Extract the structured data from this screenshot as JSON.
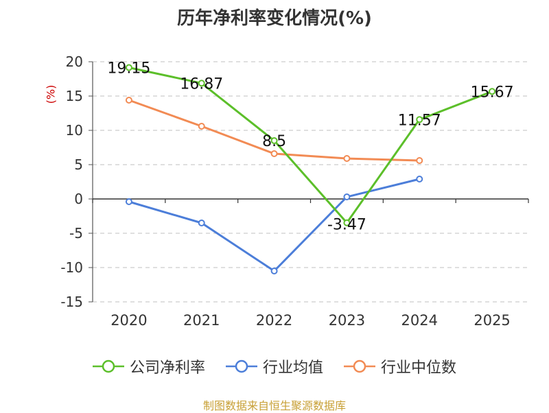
{
  "title": "历年净利率变化情况(%)",
  "source": "制图数据来自恒生聚源数据库",
  "chart_data": {
    "type": "line",
    "title": "历年净利率变化情况(%)",
    "ylabel": "(%)",
    "xlabel": "",
    "categories": [
      "2020",
      "2021",
      "2022",
      "2023",
      "2024",
      "2025"
    ],
    "ylim": [
      -15,
      20
    ],
    "yticks": [
      20,
      15,
      10,
      5,
      0,
      -5,
      -10,
      -15
    ],
    "grid": true,
    "legend_position": "bottom",
    "series": [
      {
        "name": "公司净利率",
        "color": "#5cbf2a",
        "values": [
          19.15,
          16.87,
          8.5,
          -3.47,
          11.57,
          15.67
        ],
        "labels": [
          "19.15",
          "16.87",
          "8.5",
          "-3.47",
          "11.57",
          "15.67"
        ]
      },
      {
        "name": "行业均值",
        "color": "#4c7ed9",
        "values": [
          -0.4,
          -3.5,
          -10.5,
          0.3,
          2.9,
          null
        ]
      },
      {
        "name": "行业中位数",
        "color": "#f28b54",
        "values": [
          14.4,
          10.6,
          6.6,
          5.9,
          5.6,
          null
        ]
      }
    ]
  }
}
